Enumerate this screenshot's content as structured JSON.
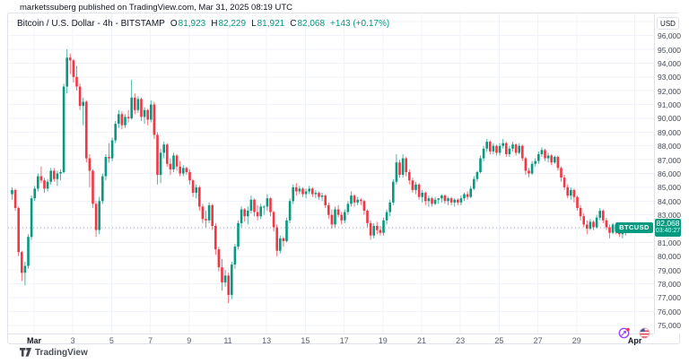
{
  "header": {
    "attribution": "marketssuberg published on TradingView.com, Mar 31, 2025 08:19 UTC"
  },
  "legend": {
    "title": "Bitcoin / U.S. Dollar - 4h - BITSTAMP",
    "ohlc": [
      {
        "label": "O",
        "value": "81,923"
      },
      {
        "label": "H",
        "value": "82,229"
      },
      {
        "label": "L",
        "value": "81,921"
      },
      {
        "label": "C",
        "value": "82,068"
      }
    ],
    "change": "+143 (+0.17%)"
  },
  "price_axis": {
    "unit_button": "USD",
    "ticks": [
      "96,000",
      "95,000",
      "94,000",
      "93,000",
      "92,000",
      "91,000",
      "90,000",
      "89,000",
      "88,000",
      "87,000",
      "86,000",
      "85,000",
      "84,000",
      "83,000",
      "82,000",
      "81,000",
      "80,000",
      "79,000",
      "78,000",
      "77,000",
      "76,000",
      "75,000"
    ],
    "last_price_label": "82,068",
    "countdown": "03:40:27",
    "symbol_badge": "BTCUSD"
  },
  "time_axis": {
    "ticks": [
      {
        "label": "Mar",
        "day": 1,
        "month": true
      },
      {
        "label": "3",
        "day": 3
      },
      {
        "label": "5",
        "day": 5
      },
      {
        "label": "7",
        "day": 7
      },
      {
        "label": "9",
        "day": 9
      },
      {
        "label": "11",
        "day": 11
      },
      {
        "label": "13",
        "day": 13
      },
      {
        "label": "15",
        "day": 15
      },
      {
        "label": "17",
        "day": 17
      },
      {
        "label": "19",
        "day": 19
      },
      {
        "label": "21",
        "day": 21
      },
      {
        "label": "23",
        "day": 23
      },
      {
        "label": "25",
        "day": 25
      },
      {
        "label": "27",
        "day": 27
      },
      {
        "label": "29",
        "day": 29
      },
      {
        "label": "Apr",
        "day": 32,
        "month": true
      }
    ]
  },
  "footer": {
    "logo_text": "TradingView"
  },
  "colors": {
    "up": "#089981",
    "down": "#F23645",
    "grid": "#f0f3fa",
    "axis_text": "#444a56",
    "accent": "#089981"
  },
  "chart_data": {
    "type": "candlestick",
    "title": "Bitcoin / U.S. Dollar",
    "symbol": "BTCUSD",
    "exchange": "BITSTAMP",
    "interval": "4h",
    "currency": "USD",
    "x_range": "Feb 28 - Mar 31, 2025 (4-hour candles)",
    "ylim": [
      74400,
      97600
    ],
    "y_tick_step": 1000,
    "last_price": 82068,
    "current_ohlc": {
      "open": 81923,
      "high": 82229,
      "low": 81921,
      "close": 82068
    },
    "change_abs": 143,
    "change_pct": 0.17,
    "grid": true,
    "candles": [
      [
        84500,
        85000,
        84100,
        84800
      ],
      [
        84800,
        84900,
        83300,
        83500
      ],
      [
        83500,
        83600,
        80000,
        80300
      ],
      [
        80300,
        80400,
        78200,
        78800
      ],
      [
        78800,
        79600,
        77900,
        79300
      ],
      [
        79300,
        81600,
        79100,
        81400
      ],
      [
        81400,
        84400,
        81200,
        84200
      ],
      [
        84200,
        85100,
        84000,
        84900
      ],
      [
        84900,
        86000,
        84700,
        85800
      ],
      [
        85800,
        86500,
        85300,
        85500
      ],
      [
        85500,
        85700,
        84600,
        84900
      ],
      [
        84900,
        85600,
        84700,
        85400
      ],
      [
        85400,
        86400,
        85200,
        86200
      ],
      [
        86200,
        86400,
        85400,
        85600
      ],
      [
        85600,
        86200,
        85100,
        86000
      ],
      [
        86000,
        86300,
        85500,
        86100
      ],
      [
        86100,
        92500,
        86000,
        92300
      ],
      [
        92300,
        95000,
        91800,
        94400
      ],
      [
        94400,
        94700,
        93200,
        94200
      ],
      [
        94200,
        94300,
        92600,
        93000
      ],
      [
        93000,
        93800,
        92000,
        92300
      ],
      [
        92300,
        92500,
        90600,
        90900
      ],
      [
        90900,
        91500,
        89500,
        91200
      ],
      [
        91200,
        91300,
        86800,
        87100
      ],
      [
        87100,
        87400,
        85000,
        86200
      ],
      [
        86200,
        86300,
        83500,
        83800
      ],
      [
        83800,
        84000,
        81400,
        81900
      ],
      [
        81900,
        84300,
        81600,
        84000
      ],
      [
        84000,
        86000,
        83800,
        85800
      ],
      [
        85800,
        87400,
        85500,
        87200
      ],
      [
        87200,
        88200,
        86800,
        87100
      ],
      [
        87100,
        88600,
        86900,
        88400
      ],
      [
        88400,
        89800,
        88200,
        89600
      ],
      [
        89600,
        90600,
        89300,
        90300
      ],
      [
        90300,
        90500,
        89200,
        89500
      ],
      [
        89500,
        90300,
        89300,
        90100
      ],
      [
        90100,
        90600,
        89700,
        90000
      ],
      [
        90000,
        92800,
        89900,
        91500
      ],
      [
        91500,
        91800,
        90300,
        90600
      ],
      [
        90600,
        91600,
        90400,
        91400
      ],
      [
        91400,
        91500,
        89800,
        90100
      ],
      [
        90100,
        90800,
        89600,
        90600
      ],
      [
        90600,
        90700,
        89500,
        89900
      ],
      [
        89900,
        91300,
        89700,
        91000
      ],
      [
        91000,
        91200,
        88500,
        88800
      ],
      [
        88800,
        89000,
        85200,
        85900
      ],
      [
        85900,
        87800,
        85300,
        87500
      ],
      [
        87500,
        88300,
        87100,
        88100
      ],
      [
        88100,
        88200,
        86500,
        86700
      ],
      [
        86700,
        87100,
        85900,
        86300
      ],
      [
        86300,
        87500,
        86100,
        87300
      ],
      [
        87300,
        87400,
        86200,
        86500
      ],
      [
        86500,
        86900,
        85800,
        86000
      ],
      [
        86000,
        86600,
        85800,
        86400
      ],
      [
        86400,
        86500,
        85900,
        86100
      ],
      [
        86100,
        86300,
        85200,
        85500
      ],
      [
        85500,
        85600,
        84300,
        84600
      ],
      [
        84600,
        85200,
        84200,
        85000
      ],
      [
        85000,
        85100,
        83300,
        83600
      ],
      [
        83600,
        83800,
        82400,
        82700
      ],
      [
        82700,
        83300,
        82100,
        82600
      ],
      [
        82600,
        83900,
        82400,
        83700
      ],
      [
        83700,
        83800,
        81900,
        82200
      ],
      [
        82200,
        82400,
        80100,
        80500
      ],
      [
        80500,
        80700,
        78900,
        79200
      ],
      [
        79200,
        79800,
        77500,
        78100
      ],
      [
        78100,
        79000,
        77800,
        78600
      ],
      [
        78600,
        78800,
        76600,
        77200
      ],
      [
        77200,
        79600,
        76900,
        79400
      ],
      [
        79400,
        80900,
        79100,
        80700
      ],
      [
        80700,
        82600,
        80500,
        82400
      ],
      [
        82400,
        83600,
        82100,
        83400
      ],
      [
        83400,
        83500,
        82500,
        82900
      ],
      [
        82900,
        83600,
        82300,
        83300
      ],
      [
        83300,
        84400,
        83100,
        84100
      ],
      [
        84100,
        84200,
        82900,
        83200
      ],
      [
        83200,
        83700,
        82600,
        82900
      ],
      [
        82900,
        83800,
        82700,
        83600
      ],
      [
        83600,
        83700,
        83000,
        83600
      ],
      [
        83600,
        84500,
        83300,
        84200
      ],
      [
        84200,
        84300,
        82900,
        83200
      ],
      [
        83200,
        83300,
        81800,
        82100
      ],
      [
        82100,
        82300,
        80000,
        80400
      ],
      [
        80400,
        81500,
        80200,
        81300
      ],
      [
        81300,
        81400,
        80700,
        81100
      ],
      [
        81100,
        82800,
        81000,
        82600
      ],
      [
        82600,
        84200,
        82400,
        84000
      ],
      [
        84000,
        85200,
        83800,
        85000
      ],
      [
        85000,
        85300,
        84400,
        84700
      ],
      [
        84700,
        85100,
        84500,
        84900
      ],
      [
        84900,
        85000,
        84300,
        84500
      ],
      [
        84500,
        84900,
        84200,
        84700
      ],
      [
        84700,
        85100,
        84500,
        84900
      ],
      [
        84900,
        85000,
        84300,
        84500
      ],
      [
        84500,
        84800,
        84200,
        84600
      ],
      [
        84600,
        84700,
        84100,
        84300
      ],
      [
        84300,
        84600,
        84000,
        84400
      ],
      [
        84400,
        84500,
        83500,
        83700
      ],
      [
        83700,
        83900,
        82700,
        83000
      ],
      [
        83000,
        83400,
        82000,
        82300
      ],
      [
        82300,
        83600,
        82100,
        83400
      ],
      [
        83400,
        83700,
        82800,
        83000
      ],
      [
        83000,
        83200,
        82300,
        82600
      ],
      [
        82600,
        83400,
        82400,
        83200
      ],
      [
        83200,
        84000,
        83000,
        83800
      ],
      [
        83800,
        84700,
        83600,
        84400
      ],
      [
        84400,
        84500,
        83600,
        83900
      ],
      [
        83900,
        84300,
        83700,
        84100
      ],
      [
        84100,
        84200,
        83700,
        84000
      ],
      [
        84000,
        84100,
        83000,
        83300
      ],
      [
        83300,
        83400,
        82100,
        82400
      ],
      [
        82400,
        82600,
        81200,
        81500
      ],
      [
        81500,
        82400,
        81300,
        82200
      ],
      [
        82200,
        82500,
        81600,
        81900
      ],
      [
        81900,
        82200,
        81500,
        81700
      ],
      [
        81700,
        82800,
        81500,
        82600
      ],
      [
        82600,
        83400,
        82300,
        83200
      ],
      [
        83200,
        84100,
        82900,
        83900
      ],
      [
        83900,
        85600,
        83700,
        85400
      ],
      [
        85400,
        87400,
        85200,
        86800
      ],
      [
        86800,
        87000,
        85700,
        85900
      ],
      [
        85900,
        87400,
        85700,
        87100
      ],
      [
        87100,
        87200,
        85800,
        86100
      ],
      [
        86100,
        86300,
        85200,
        85500
      ],
      [
        85500,
        85700,
        84600,
        84800
      ],
      [
        84800,
        85400,
        84500,
        85200
      ],
      [
        85200,
        85300,
        84100,
        84300
      ],
      [
        84300,
        84800,
        83900,
        84600
      ],
      [
        84600,
        84700,
        83700,
        84000
      ],
      [
        84000,
        84400,
        83600,
        84200
      ],
      [
        84200,
        84300,
        83600,
        83800
      ],
      [
        83800,
        84300,
        83700,
        84100
      ],
      [
        84100,
        84200,
        83800,
        84200
      ],
      [
        84200,
        84500,
        83900,
        84400
      ],
      [
        84400,
        84500,
        83800,
        84000
      ],
      [
        84000,
        84300,
        83700,
        84200
      ],
      [
        84200,
        84300,
        83700,
        83900
      ],
      [
        83900,
        84200,
        83600,
        84100
      ],
      [
        84100,
        84200,
        83700,
        83900
      ],
      [
        83900,
        84400,
        83700,
        84200
      ],
      [
        84200,
        84600,
        84000,
        84500
      ],
      [
        84500,
        84700,
        84100,
        84300
      ],
      [
        84300,
        85100,
        84200,
        84900
      ],
      [
        84900,
        85800,
        84800,
        85600
      ],
      [
        85600,
        86200,
        85400,
        86100
      ],
      [
        86100,
        87300,
        86000,
        87100
      ],
      [
        87100,
        88000,
        86900,
        87800
      ],
      [
        87800,
        88500,
        87600,
        88300
      ],
      [
        88300,
        88400,
        87400,
        87600
      ],
      [
        87600,
        88200,
        87400,
        88000
      ],
      [
        88000,
        88100,
        87300,
        87500
      ],
      [
        87500,
        88200,
        87300,
        88000
      ],
      [
        88000,
        88500,
        87800,
        88200
      ],
      [
        88200,
        88300,
        87200,
        87400
      ],
      [
        87400,
        88000,
        87200,
        87800
      ],
      [
        87800,
        88300,
        87600,
        88100
      ],
      [
        88100,
        88200,
        87300,
        87500
      ],
      [
        87500,
        88200,
        87400,
        88000
      ],
      [
        88000,
        88100,
        86900,
        87100
      ],
      [
        87100,
        87200,
        85900,
        86200
      ],
      [
        86200,
        86400,
        85700,
        86000
      ],
      [
        86000,
        86900,
        85900,
        86700
      ],
      [
        86700,
        87100,
        86500,
        86900
      ],
      [
        86900,
        87600,
        86700,
        87400
      ],
      [
        87400,
        87900,
        87200,
        87700
      ],
      [
        87700,
        87800,
        86900,
        87100
      ],
      [
        87100,
        87500,
        86800,
        87300
      ],
      [
        87300,
        87400,
        86600,
        86800
      ],
      [
        86800,
        87300,
        86700,
        87200
      ],
      [
        87200,
        87300,
        86200,
        86400
      ],
      [
        86400,
        86500,
        85400,
        85700
      ],
      [
        85700,
        85900,
        84800,
        85000
      ],
      [
        85000,
        85200,
        84200,
        84400
      ],
      [
        84400,
        85000,
        84100,
        84800
      ],
      [
        84800,
        84900,
        83900,
        84300
      ],
      [
        84300,
        84400,
        83300,
        83500
      ],
      [
        83500,
        83700,
        82600,
        82900
      ],
      [
        82900,
        83100,
        82100,
        82300
      ],
      [
        82300,
        82600,
        81600,
        82000
      ],
      [
        82000,
        82700,
        81900,
        82500
      ],
      [
        82500,
        82600,
        81900,
        82100
      ],
      [
        82100,
        83000,
        82000,
        82800
      ],
      [
        82800,
        83500,
        82600,
        83300
      ],
      [
        83300,
        83400,
        82400,
        82600
      ],
      [
        82600,
        82800,
        81900,
        82100
      ],
      [
        82100,
        82300,
        81300,
        81700
      ],
      [
        81700,
        82400,
        81600,
        82300
      ],
      [
        82300,
        82400,
        81600,
        81800
      ],
      [
        81800,
        82100,
        81400,
        81600
      ],
      [
        81600,
        82000,
        81300,
        81900
      ],
      [
        81900,
        82000,
        81500,
        81700
      ],
      [
        81923,
        82229,
        81921,
        82068
      ]
    ]
  }
}
